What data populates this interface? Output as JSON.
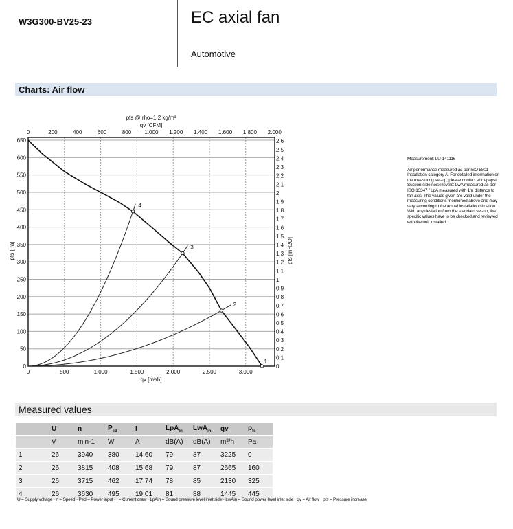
{
  "header": {
    "model": "W3G300-BV25-23",
    "title": "EC axial fan",
    "subtitle": "Automotive"
  },
  "charts_heading": "Charts: Air flow",
  "note": {
    "measurement": "Measurement: LU-141116",
    "text": "Air performance measured as per ISO 5801 Installation category A. For detailed information on the measuring set-up, please contact ebm-papst. Suction-side noise levels: LwA measured as per ISO 13347 / LpA measured with 1m distance to fan axis. The values given are valid under the measuring conditions mentioned above and may vary according to the actual installation situation. With any deviation from the standard set-up, the specific values have to be checked and reviewed with the unit installed."
  },
  "chart_data": {
    "type": "line",
    "title": "pfs @ rho=1,2 kg/m³",
    "xlabel": "qv [m³/h]",
    "xlabel_top": "qv [CFM]",
    "ylabel": "pfs [Pa]",
    "ylabel_right": "pfs [inH2O]",
    "xlim": [
      0,
      3400
    ],
    "ylim": [
      0,
      658
    ],
    "grid": true,
    "x_ticks": [
      0,
      500,
      1000,
      1500,
      2000,
      2500,
      3000
    ],
    "x_tick_labels": [
      "0",
      "500",
      "1.000",
      "1.500",
      "2.000",
      "2.500",
      "3.000"
    ],
    "x_top_ticks_cfm": [
      0,
      200,
      400,
      600,
      800,
      1000,
      1200,
      1400,
      1600,
      1800,
      2000
    ],
    "x_top_tick_labels": [
      "0",
      "200",
      "400",
      "600",
      "800",
      "1.000",
      "1.200",
      "1.400",
      "1.600",
      "1.800",
      "2.000"
    ],
    "y_ticks": [
      0,
      50,
      100,
      150,
      200,
      250,
      300,
      350,
      400,
      450,
      500,
      550,
      600,
      650
    ],
    "y_right_ticks": [
      "0",
      "0,1",
      "0,2",
      "0,3",
      "0,4",
      "0,5",
      "0,6",
      "0,7",
      "0,8",
      "0,9",
      "1",
      "1,1",
      "1,2",
      "1,3",
      "1,4",
      "1,5",
      "1,6",
      "1,7",
      "1,8",
      "1,9",
      "2",
      "2,1",
      "2,2",
      "2,3",
      "2,4",
      "2,5",
      "2,6"
    ],
    "fan_curve": {
      "x": [
        0,
        200,
        500,
        800,
        1000,
        1250,
        1445,
        1700,
        1950,
        2130,
        2350,
        2500,
        2665,
        2850,
        3050,
        3225
      ],
      "y": [
        650,
        610,
        560,
        522,
        500,
        472,
        445,
        400,
        355,
        325,
        270,
        225,
        160,
        110,
        55,
        0
      ]
    },
    "operating_points": [
      {
        "label": "1",
        "qv": 3225,
        "pfs": 0,
        "curve_end": 3225
      },
      {
        "label": "2",
        "qv": 2665,
        "pfs": 160,
        "curve_end": 2800
      },
      {
        "label": "3",
        "qv": 2130,
        "pfs": 325,
        "curve_end": 2210
      },
      {
        "label": "4",
        "qv": 1445,
        "pfs": 445,
        "curve_end": 1490
      }
    ]
  },
  "measured": {
    "heading": "Measured values",
    "headers": [
      "",
      "U",
      "n",
      "P_ed",
      "I",
      "LpA_in",
      "LwA_in",
      "qv",
      "p_fs"
    ],
    "header_main": [
      "",
      "U",
      "n",
      "P",
      "I",
      "LpA",
      "LwA",
      "qv",
      "p"
    ],
    "header_sub": [
      "",
      "",
      "",
      "ed",
      "",
      "in",
      "in",
      "",
      "fs"
    ],
    "units": [
      "",
      "V",
      "min-1",
      "W",
      "A",
      "dB(A)",
      "dB(A)",
      "m³/h",
      "Pa"
    ],
    "rows": [
      [
        "1",
        "26",
        "3940",
        "380",
        "14.60",
        "79",
        "87",
        "3225",
        "0"
      ],
      [
        "2",
        "26",
        "3815",
        "408",
        "15.68",
        "79",
        "87",
        "2665",
        "160"
      ],
      [
        "3",
        "26",
        "3715",
        "462",
        "17.74",
        "78",
        "85",
        "2130",
        "325"
      ],
      [
        "4",
        "26",
        "3630",
        "495",
        "19.01",
        "81",
        "88",
        "1445",
        "445"
      ]
    ],
    "legend": "U = Supply voltage · n = Speed · Ped = Power input · I = Current draw · LpAin = Sound pressure level inlet side · LwAin = Sound power level inlet side · qv = Air flow · pfs = Pressure increase"
  }
}
